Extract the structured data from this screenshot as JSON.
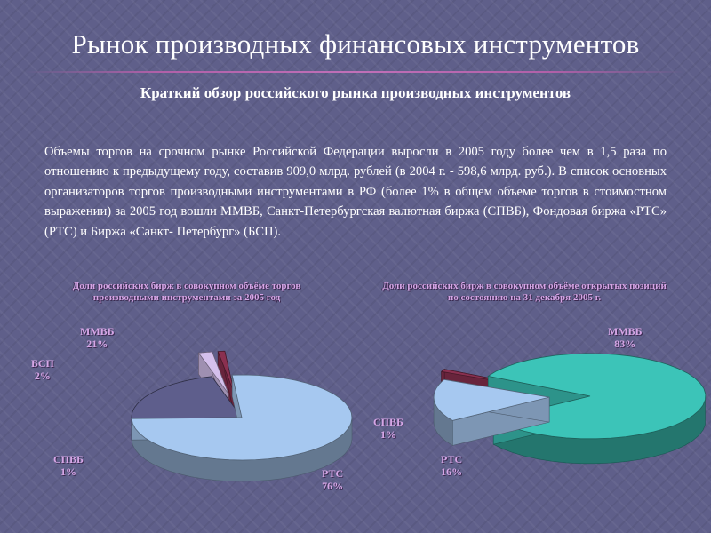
{
  "slide": {
    "title": "Рынок производных финансовых инструментов",
    "subtitle": "Краткий обзор российского рынка производных инструментов",
    "body": "Объемы торгов на срочном рынке Российской Федерации выросли в 2005 году более чем в 1,5 раза по отношению к предыдущему году, составив 909,0 млрд. рублей (в 2004 г. - 598,6 млрд. руб.). В список основных организаторов торгов производными инструментами в РФ (более 1% в общем объеме торгов в стоимостном выражении) за 2005 год вошли ММВБ, Санкт-Петербургская валютная биржа (СПВБ), Фондовая биржа «РТС» (РТС) и Биржа «Санкт- Петербург» (БСП)."
  },
  "chart_data": [
    {
      "type": "pie",
      "title": "Доли российских бирж в совокупном объёме торгов производными инструментами за 2005 год",
      "slices": [
        {
          "name": "РТС",
          "value": 76,
          "label": "76%",
          "color": "#a6c8f0"
        },
        {
          "name": "ММВБ",
          "value": 21,
          "label": "21%",
          "color": "#5e5e8c"
        },
        {
          "name": "БСП",
          "value": 2,
          "label": "2%",
          "color": "#d4c0ec"
        },
        {
          "name": "СПВБ",
          "value": 1,
          "label": "1%",
          "color": "#8a3050"
        }
      ]
    },
    {
      "type": "pie",
      "title": "Доли российских бирж в совокупном объёме открытых позиций по состоянию на 31 декабря 2005 г.",
      "slices": [
        {
          "name": "ММВБ",
          "value": 83,
          "label": "83%",
          "color": "#3cc4b8"
        },
        {
          "name": "РТС",
          "value": 16,
          "label": "16%",
          "color": "#a6c8f0"
        },
        {
          "name": "СПВБ",
          "value": 1,
          "label": "1%",
          "color": "#8a3050"
        }
      ]
    }
  ]
}
